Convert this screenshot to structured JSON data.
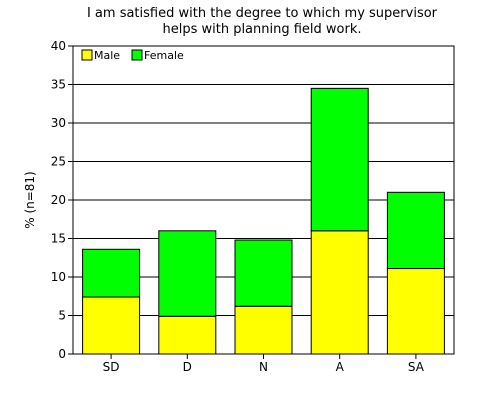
{
  "chart_data": {
    "type": "bar",
    "stacked": true,
    "title": "I am satisfied with the degree to which my supervisor helps with planning field work.",
    "title_lines": [
      "I am satisfied with the degree to which my supervisor",
      "helps with planning field work."
    ],
    "xlabel": "",
    "ylabel": "% (n=81)",
    "ylim": [
      0,
      40
    ],
    "yticks": [
      0,
      5,
      10,
      15,
      20,
      25,
      30,
      35,
      40
    ],
    "categories": [
      "SD",
      "D",
      "N",
      "A",
      "SA"
    ],
    "series": [
      {
        "name": "Male",
        "color": "#ffff00",
        "values": [
          7.4,
          4.9,
          6.2,
          16.0,
          11.1
        ]
      },
      {
        "name": "Female",
        "color": "#00ff00",
        "values": [
          6.2,
          11.1,
          8.6,
          18.5,
          9.9
        ]
      }
    ],
    "grid": true,
    "legend_position": "top-left"
  }
}
